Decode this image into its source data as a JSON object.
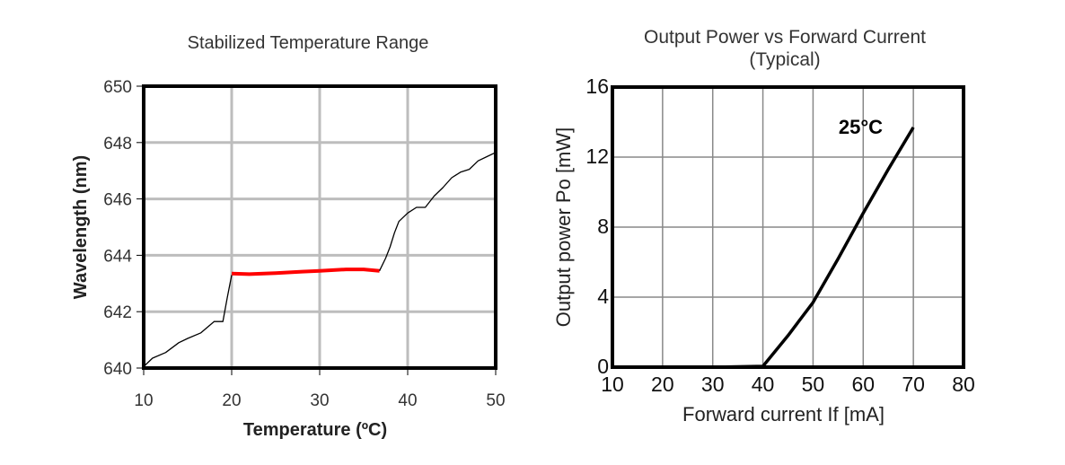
{
  "chart_data": [
    {
      "type": "line",
      "title": "Stabilized Temperature Range",
      "xlabel": "Temperature (ºC)",
      "ylabel": "Wavelength (nm)",
      "xlim": [
        10,
        50
      ],
      "ylim": [
        640,
        650
      ],
      "xticks": [
        "10",
        "20",
        "30",
        "40",
        "50"
      ],
      "yticks": [
        "640",
        "642",
        "644",
        "646",
        "648",
        "650"
      ],
      "grid": true,
      "series": [
        {
          "color": "#000000",
          "x": [
            10,
            11,
            12.5,
            14,
            15,
            16.5,
            18,
            19,
            19.5,
            20
          ],
          "y": [
            640.05,
            640.35,
            640.55,
            640.9,
            641.05,
            641.25,
            641.65,
            641.65,
            642.5,
            643.3
          ]
        },
        {
          "color": "#ff0000",
          "x": [
            20,
            22,
            25,
            28,
            30,
            33,
            35,
            36.8
          ],
          "y": [
            643.35,
            643.33,
            643.37,
            643.42,
            643.45,
            643.5,
            643.5,
            643.45
          ]
        },
        {
          "color": "#000000",
          "x": [
            36.8,
            37.5,
            38,
            38.5,
            39,
            40,
            41,
            42,
            43,
            44,
            45,
            46,
            47,
            48,
            49,
            50
          ],
          "y": [
            643.45,
            643.9,
            644.3,
            644.8,
            645.2,
            645.5,
            645.7,
            645.7,
            646.1,
            646.4,
            646.75,
            646.95,
            647.05,
            647.35,
            647.5,
            647.65
          ]
        }
      ]
    },
    {
      "type": "line",
      "title": "Output Power vs Forward Current",
      "subtitle": "(Typical)",
      "xlabel": "Forward current If [mA]",
      "ylabel": "Output power Po [mW]",
      "xlim": [
        10,
        80
      ],
      "ylim": [
        0,
        16
      ],
      "xticks": [
        "10",
        "20",
        "30",
        "40",
        "50",
        "60",
        "70",
        "80"
      ],
      "yticks": [
        "0",
        "4",
        "8",
        "12",
        "16"
      ],
      "grid": true,
      "annotation": "25°C",
      "series": [
        {
          "color": "#000000",
          "x": [
            30,
            40,
            45,
            50,
            55,
            60,
            65,
            70
          ],
          "y": [
            0,
            0.05,
            1.8,
            3.7,
            6.2,
            8.8,
            11.3,
            13.7
          ]
        }
      ]
    }
  ]
}
